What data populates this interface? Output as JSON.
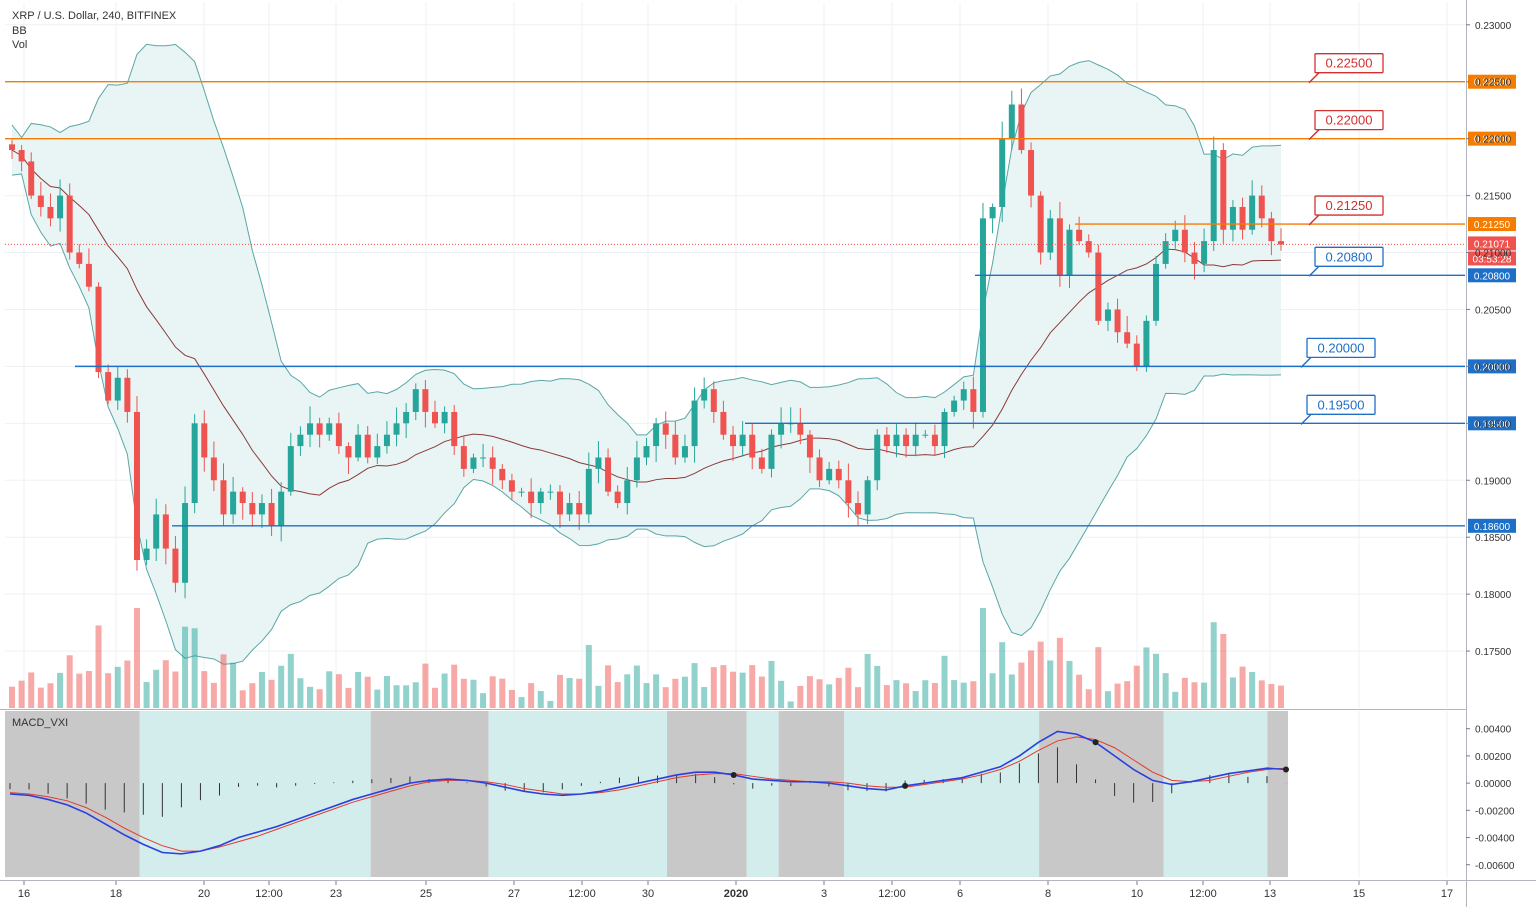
{
  "legend": {
    "title": "XRP / U.S. Dollar, 240, BITFINEX",
    "bb": "BB",
    "vol": "Vol",
    "macd": "MACD_VXI"
  },
  "price_label": "0.21071",
  "countdown": "03:53:28",
  "colors": {
    "up": "#26a69a",
    "down": "#ef5350",
    "orange": "#f57c00",
    "blue": "#1e6fc8",
    "bb_line": "#5aa6a6",
    "bb_fill": "#e9f5f5",
    "bb_mid": "#8b3a3a",
    "macd_bg_up": "#d3ecec",
    "macd_bg_down": "#c8c8c8",
    "macd_line": "#2a3fe0",
    "signal_line": "#e33a2a"
  },
  "chart_data": {
    "type": "candlestick",
    "title": "XRP / U.S. Dollar, 240, BITFINEX",
    "price_axis": {
      "ylim": [
        0.17,
        0.232
      ],
      "ticks": [
        "0.23000",
        "0.22500",
        "0.22000",
        "0.21500",
        "0.21000",
        "0.20500",
        "0.20000",
        "0.19500",
        "0.19000",
        "0.18500",
        "0.18000",
        "0.17500"
      ]
    },
    "macd_axis": {
      "ylim": [
        -0.0069,
        0.0053
      ],
      "ticks": [
        "0.00400",
        "0.00200",
        "0.00000",
        "-0.00200",
        "-0.00400",
        "-0.00600"
      ]
    },
    "time_labels": [
      "16",
      "18",
      "20",
      "12:00",
      "23",
      "25",
      "27",
      "12:00",
      "30",
      "2020",
      "3",
      "12:00",
      "6",
      "8",
      "10",
      "12:00",
      "13",
      "15",
      "17"
    ],
    "levels": [
      {
        "label": "0.22500",
        "value": 0.225,
        "color": "orange"
      },
      {
        "label": "0.22000",
        "value": 0.22,
        "color": "orange"
      },
      {
        "label": "0.21250",
        "value": 0.2125,
        "color": "orange"
      },
      {
        "label": "0.20800",
        "value": 0.208,
        "color": "blue"
      },
      {
        "label": "0.20000",
        "value": 0.2,
        "color": "blue"
      },
      {
        "label": "0.19500",
        "value": 0.195,
        "color": "blue"
      },
      {
        "label": "0.18600",
        "value": 0.186,
        "color": "blue"
      }
    ],
    "last_price": 0.21071,
    "closes": [
      0.219,
      0.218,
      0.215,
      0.214,
      0.213,
      0.215,
      0.21,
      0.209,
      0.207,
      0.1995,
      0.197,
      0.199,
      0.196,
      0.183,
      0.184,
      0.187,
      0.184,
      0.181,
      0.188,
      0.195,
      0.192,
      0.19,
      0.187,
      0.189,
      0.188,
      0.187,
      0.188,
      0.186,
      0.189,
      0.193,
      0.194,
      0.195,
      0.194,
      0.195,
      0.193,
      0.192,
      0.194,
      0.192,
      0.193,
      0.194,
      0.195,
      0.196,
      0.198,
      0.196,
      0.195,
      0.196,
      0.193,
      0.191,
      0.192,
      0.192,
      0.191,
      0.19,
      0.189,
      0.189,
      0.188,
      0.189,
      0.189,
      0.187,
      0.188,
      0.187,
      0.191,
      0.192,
      0.189,
      0.188,
      0.19,
      0.192,
      0.193,
      0.195,
      0.194,
      0.192,
      0.193,
      0.197,
      0.198,
      0.196,
      0.194,
      0.193,
      0.194,
      0.192,
      0.191,
      0.194,
      0.195,
      0.195,
      0.194,
      0.192,
      0.19,
      0.191,
      0.19,
      0.188,
      0.187,
      0.19,
      0.194,
      0.193,
      0.194,
      0.193,
      0.194,
      0.194,
      0.193,
      0.196,
      0.197,
      0.198,
      0.196,
      0.213,
      0.214,
      0.22,
      0.223,
      0.219,
      0.215,
      0.21,
      0.213,
      0.208,
      0.212,
      0.211,
      0.21,
      0.204,
      0.205,
      0.203,
      0.202,
      0.2,
      0.204,
      0.209,
      0.211,
      0.212,
      0.21,
      0.209,
      0.211,
      0.219,
      0.212,
      0.214,
      0.212,
      0.215,
      0.213,
      0.211,
      0.2107
    ],
    "macd": [
      -0.0008,
      -0.0009,
      -0.0012,
      -0.0016,
      -0.0022,
      -0.003,
      -0.0038,
      -0.0045,
      -0.0051,
      -0.0052,
      -0.005,
      -0.0046,
      -0.004,
      -0.0036,
      -0.0032,
      -0.0027,
      -0.0022,
      -0.0017,
      -0.0012,
      -0.0008,
      -0.0004,
      0.0,
      0.0002,
      0.0003,
      0.0002,
      0.0,
      -0.0003,
      -0.0006,
      -0.0008,
      -0.0009,
      -0.0008,
      -0.0006,
      -0.0003,
      0.0,
      0.0003,
      0.0006,
      0.0008,
      0.0008,
      0.0006,
      0.0003,
      0.0002,
      0.0001,
      0.0001,
      0.0,
      -0.0002,
      -0.0004,
      -0.0005,
      -0.0002,
      0.0,
      0.0002,
      0.0004,
      0.0008,
      0.0012,
      0.002,
      0.003,
      0.0038,
      0.0036,
      0.003,
      0.002,
      0.001,
      0.0002,
      -0.0001,
      0.0001,
      0.0004,
      0.0007,
      0.0009,
      0.0011,
      0.001
    ],
    "signal": [
      -0.0007,
      -0.0008,
      -0.001,
      -0.0013,
      -0.0018,
      -0.0025,
      -0.0033,
      -0.004,
      -0.0046,
      -0.005,
      -0.005,
      -0.0047,
      -0.0043,
      -0.0039,
      -0.0034,
      -0.0029,
      -0.0024,
      -0.0019,
      -0.0014,
      -0.001,
      -0.0006,
      -0.0002,
      0.0001,
      0.0002,
      0.0002,
      0.0001,
      -0.0001,
      -0.0004,
      -0.0006,
      -0.0008,
      -0.0008,
      -0.0007,
      -0.0005,
      -0.0002,
      0.0001,
      0.0004,
      0.0006,
      0.0007,
      0.0007,
      0.0005,
      0.0003,
      0.0002,
      0.0001,
      0.0001,
      0.0,
      -0.0002,
      -0.0003,
      -0.0003,
      -0.0001,
      0.0001,
      0.0003,
      0.0006,
      0.001,
      0.0016,
      0.0024,
      0.0031,
      0.0034,
      0.0032,
      0.0026,
      0.0017,
      0.0008,
      0.0002,
      0.0001,
      0.0002,
      0.0005,
      0.0008,
      0.001,
      0.0011
    ],
    "macd_regions": [
      {
        "from": 0.0,
        "to": 0.105,
        "state": "down"
      },
      {
        "from": 0.105,
        "to": 0.285,
        "state": "up"
      },
      {
        "from": 0.285,
        "to": 0.377,
        "state": "down"
      },
      {
        "from": 0.377,
        "to": 0.516,
        "state": "up"
      },
      {
        "from": 0.516,
        "to": 0.578,
        "state": "down"
      },
      {
        "from": 0.578,
        "to": 0.603,
        "state": "up"
      },
      {
        "from": 0.603,
        "to": 0.654,
        "state": "down"
      },
      {
        "from": 0.654,
        "to": 0.806,
        "state": "up"
      },
      {
        "from": 0.806,
        "to": 0.903,
        "state": "down"
      },
      {
        "from": 0.903,
        "to": 0.984,
        "state": "up"
      },
      {
        "from": 0.984,
        "to": 1.0,
        "state": "down"
      }
    ]
  }
}
